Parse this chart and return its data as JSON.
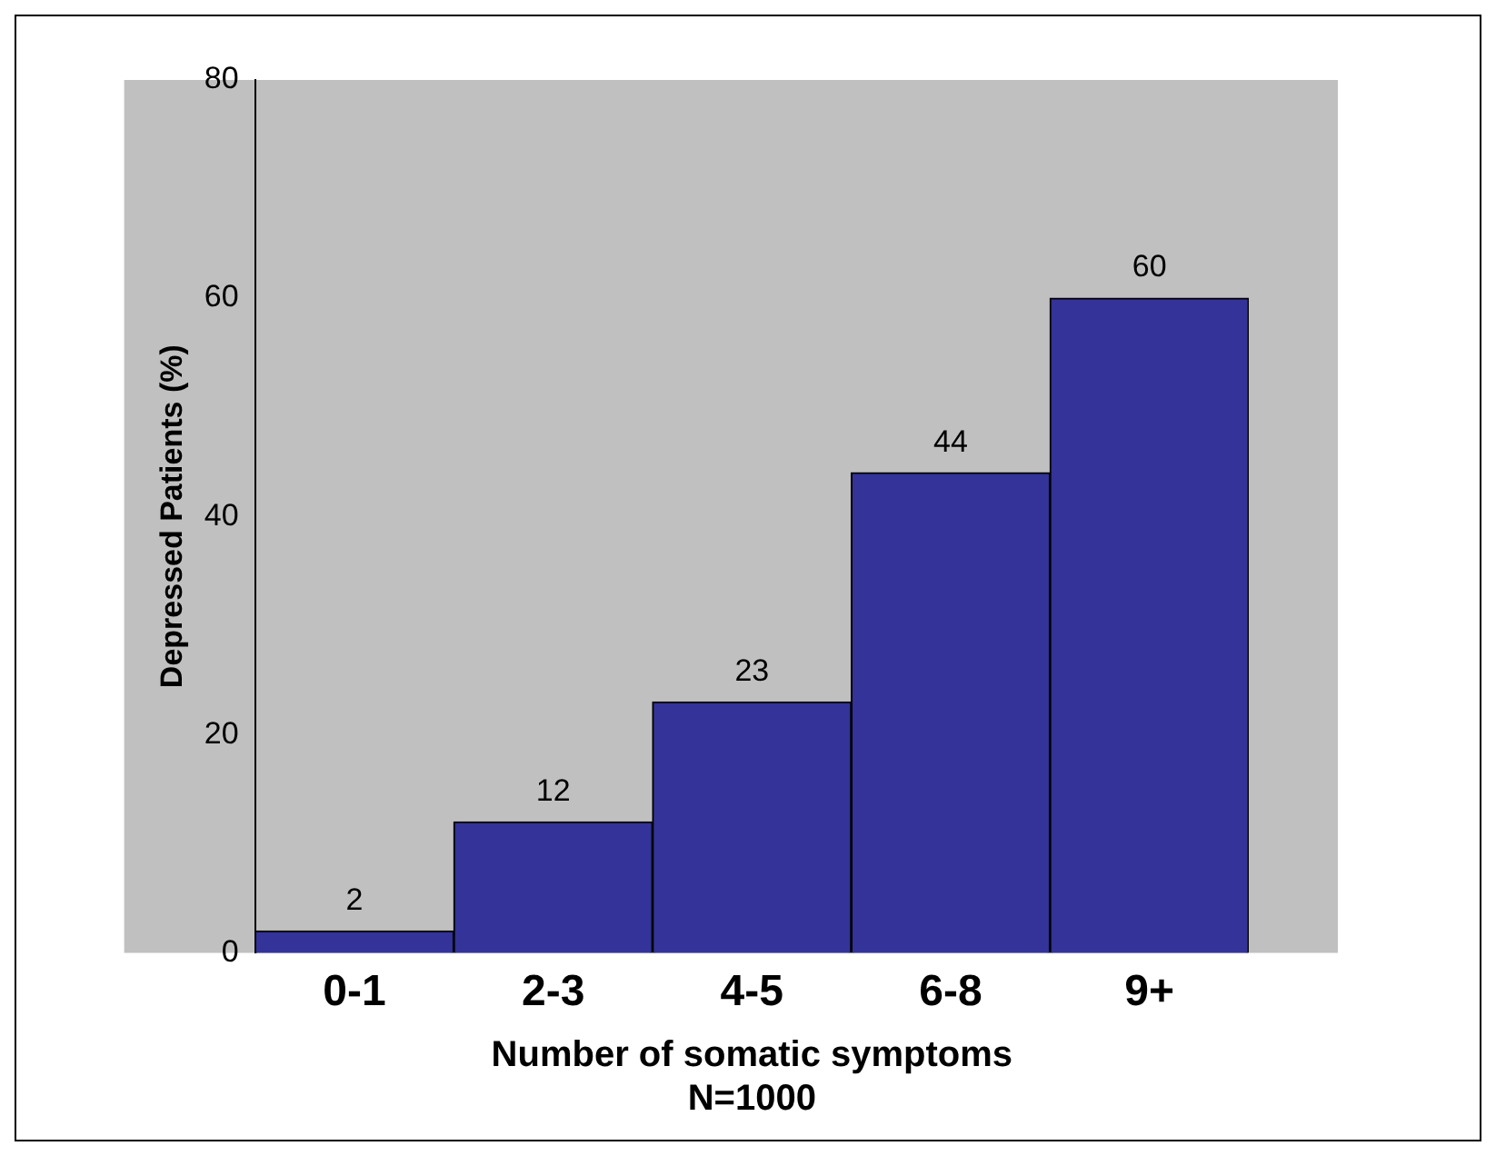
{
  "chart_data": {
    "type": "bar",
    "categories": [
      "0-1",
      "2-3",
      "4-5",
      "6-8",
      "9+"
    ],
    "values": [
      2,
      12,
      23,
      44,
      60
    ],
    "color": "#333399",
    "xlabel": "Number of somatic symptoms",
    "ylabel": "Depressed Patients (%)",
    "annotations": [
      "N=1000"
    ],
    "ylim": [
      0,
      80
    ],
    "yticks": [
      0,
      20,
      40,
      60,
      80
    ],
    "grid": false,
    "legend": false,
    "data_labels": true
  }
}
